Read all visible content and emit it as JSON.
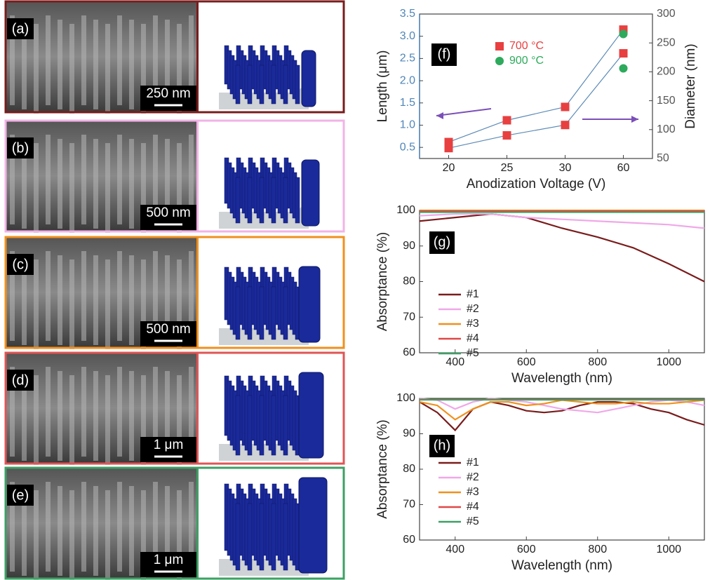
{
  "panels": [
    {
      "label": "(a)",
      "scale_bar": "250 nm",
      "border_color": "#7a1c1c"
    },
    {
      "label": "(b)",
      "scale_bar": "500 nm",
      "border_color": "#f2b3e6"
    },
    {
      "label": "(c)",
      "scale_bar": "500 nm",
      "border_color": "#f0901e"
    },
    {
      "label": "(d)",
      "scale_bar": "1 μm",
      "border_color": "#e05555"
    },
    {
      "label": "(e)",
      "scale_bar": "1 μm",
      "border_color": "#3da065"
    }
  ],
  "chart_data": [
    {
      "type": "scatter",
      "annotation": "(f)",
      "xlabel": "Anodization Voltage (V)",
      "ylabel": "Length (μm)",
      "y2label": "Diameter (nm)",
      "categories": [
        "20",
        "25",
        "30",
        "60"
      ],
      "line_color": "#5b8ab5",
      "y_color": "#4f86b8",
      "y2_color": "#555555",
      "ylim": [
        0.25,
        3.5
      ],
      "yticks": [
        0.5,
        {
          "value": 1,
          "label": "1.0"
        },
        1.5,
        {
          "value": 2,
          "label": "2.0"
        },
        2.5,
        {
          "value": 3,
          "label": "3.0"
        },
        3.5
      ],
      "y2lim": [
        50,
        300
      ],
      "y2ticks": [
        50,
        100,
        150,
        200,
        250,
        300
      ],
      "legend": "upper center",
      "series": [
        {
          "name": "700 °C",
          "color": "#e84040",
          "marker": "square",
          "values": [
            0.62,
            1.11,
            1.41,
            3.15
          ]
        },
        {
          "name": "900 °C",
          "color": "#2eaa5c",
          "marker": "circle",
          "values": [
            null,
            null,
            null,
            3.05
          ]
        },
        {
          "color": "#e84040",
          "marker": "square",
          "axis": "y2",
          "values": [
            68,
            90,
            108,
            232
          ]
        },
        {
          "color": "#2eaa5c",
          "marker": "circle",
          "axis": "y2",
          "values": [
            null,
            null,
            null,
            206
          ]
        }
      ]
    },
    {
      "type": "line",
      "annotation": "(g)",
      "xlabel": "Wavelength (nm)",
      "ylabel": "Absorptance (%)",
      "x": [
        300,
        400,
        500,
        600,
        700,
        800,
        900,
        1000,
        1100
      ],
      "xlim": [
        300,
        1100
      ],
      "xticks": [
        400,
        600,
        800,
        1000
      ],
      "ylim": [
        60,
        100
      ],
      "yticks": [
        60,
        70,
        80,
        90,
        100
      ],
      "legend": "lower left",
      "series": [
        {
          "name": "#1",
          "color": "#7a1c1c",
          "values": [
            97,
            98,
            99,
            98,
            95,
            92.5,
            89.5,
            85,
            80
          ]
        },
        {
          "name": "#2",
          "color": "#f0a8e8",
          "values": [
            98.5,
            99,
            99,
            98,
            97.5,
            97,
            96.5,
            96,
            95
          ]
        },
        {
          "name": "#3",
          "color": "#f0901e",
          "values": [
            100,
            100,
            100,
            100,
            100,
            100,
            100,
            100,
            100
          ]
        },
        {
          "name": "#4",
          "color": "#e04848",
          "values": [
            99.8,
            99.8,
            99.8,
            99.8,
            99.8,
            99.8,
            99.8,
            99.8,
            99.8
          ]
        },
        {
          "name": "#5",
          "color": "#3da065",
          "values": [
            99.5,
            99.5,
            99.5,
            99.5,
            99.5,
            99.5,
            99.5,
            99.5,
            99.5
          ]
        }
      ]
    },
    {
      "type": "line",
      "annotation": "(h)",
      "xlabel": "Wavelength (nm)",
      "ylabel": "Absorptance (%)",
      "x": [
        300,
        350,
        400,
        450,
        500,
        550,
        600,
        650,
        700,
        750,
        800,
        850,
        900,
        950,
        1000,
        1050,
        1100
      ],
      "xlim": [
        300,
        1100
      ],
      "xticks": [
        400,
        600,
        800,
        1000
      ],
      "ylim": [
        60,
        100
      ],
      "yticks": [
        60,
        70,
        80,
        90,
        100
      ],
      "legend": "lower left",
      "series": [
        {
          "name": "#1",
          "color": "#7a1c1c",
          "values": [
            99,
            96,
            91,
            97,
            99,
            98,
            96.5,
            96,
            96.5,
            98,
            99,
            99,
            98.5,
            97,
            96,
            94,
            92.5
          ]
        },
        {
          "name": "#2",
          "color": "#f0a8e8",
          "values": [
            100,
            99.5,
            97,
            99,
            100,
            99.5,
            99,
            98,
            97,
            96.5,
            96,
            97,
            98,
            99,
            99.5,
            99,
            98
          ]
        },
        {
          "name": "#3",
          "color": "#f0901e",
          "values": [
            99,
            98,
            94,
            97,
            99,
            99,
            98,
            98.5,
            99.5,
            99,
            98.5,
            98.5,
            99,
            98.5,
            98.5,
            99,
            99.5
          ]
        },
        {
          "name": "#4",
          "color": "#e04848",
          "values": [
            99.7,
            99.7,
            99.7,
            99.7,
            99.7,
            99.7,
            99.7,
            99.7,
            99.7,
            99.7,
            99.7,
            99.7,
            99.7,
            99.7,
            99.7,
            99.7,
            99.7
          ]
        },
        {
          "name": "#5",
          "color": "#3da065",
          "values": [
            99.6,
            99.6,
            99.6,
            99.6,
            99.6,
            99.6,
            99.6,
            99.6,
            99.6,
            99.6,
            99.6,
            99.6,
            99.6,
            99.6,
            99.6,
            99.6,
            99.6
          ]
        }
      ]
    }
  ]
}
